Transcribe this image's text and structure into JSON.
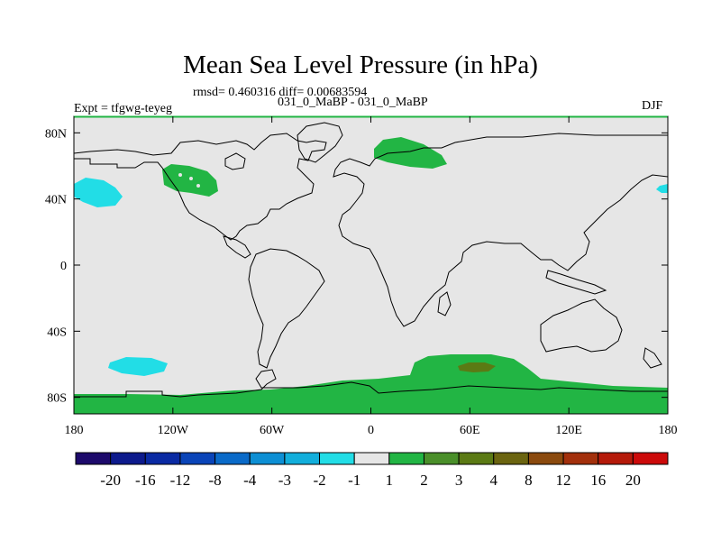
{
  "chart_data": {
    "type": "heatmap",
    "map_projection": "cylindrical-equidistant",
    "title": "Mean Sea Level Pressure (in hPa)",
    "stats": "rmsd= 0.460316 diff= 0.00683594",
    "left_label": "Expt = tfgwg-teyeg",
    "center_label": "031_0_MaBP - 031_0_MaBP",
    "right_label": "DJF",
    "x_axis": {
      "range": [
        -180,
        180
      ],
      "ticks": [
        -180,
        -120,
        -60,
        0,
        60,
        120,
        180
      ],
      "tick_labels": [
        "180",
        "120W",
        "60W",
        "0",
        "60E",
        "120E",
        "180"
      ]
    },
    "y_axis": {
      "range": [
        -90,
        90
      ],
      "ticks": [
        80,
        40,
        0,
        -40,
        -80
      ],
      "tick_labels": [
        "80N",
        "40N",
        "0",
        "40S",
        "80S"
      ]
    },
    "colorbar": {
      "labels": [
        "-20",
        "-16",
        "-12",
        "-8",
        "-4",
        "-3",
        "-2",
        "-1",
        "1",
        "2",
        "3",
        "4",
        "8",
        "12",
        "16",
        "20"
      ],
      "colors": [
        "#1d0a6b",
        "#0d1a8c",
        "#0a2aa3",
        "#0a44b8",
        "#0a6ac8",
        "#0d8fd4",
        "#12aedb",
        "#22dde6",
        "#e6e6e6",
        "#22b544",
        "#4a8f2a",
        "#5b7a14",
        "#6b6410",
        "#8b4a0e",
        "#a3300c",
        "#b51a0a",
        "#cc0a0a"
      ]
    },
    "background_value_color": "#e6e6e6",
    "anomaly_regions": [
      {
        "name": "North Pacific low",
        "value_range": "-2 to -1",
        "color": "#22dde6",
        "lon": -168,
        "lat": 43
      },
      {
        "name": "Western North America",
        "value_range": "1 to 2",
        "color": "#22b544",
        "lon": -112,
        "lat": 50
      },
      {
        "name": "Barents Sea / Arctic",
        "value_range": "1 to 2",
        "color": "#22b544",
        "lon": 47,
        "lat": 70
      },
      {
        "name": "Northeast Pacific edge",
        "value_range": "-2 to -1",
        "color": "#22dde6",
        "lon": 178,
        "lat": 45
      },
      {
        "name": "South Pacific",
        "value_range": "-2 to -1",
        "color": "#22dde6",
        "lon": -145,
        "lat": -61
      },
      {
        "name": "Antarctica / Southern Ocean",
        "value_range": "1 to 2",
        "color": "#22b544",
        "lon": 0,
        "lat": -78
      },
      {
        "name": "Southern Indian Ocean max",
        "value_range": "3 to 4",
        "color": "#5b7a14",
        "lon": 62,
        "lat": -62
      }
    ]
  }
}
